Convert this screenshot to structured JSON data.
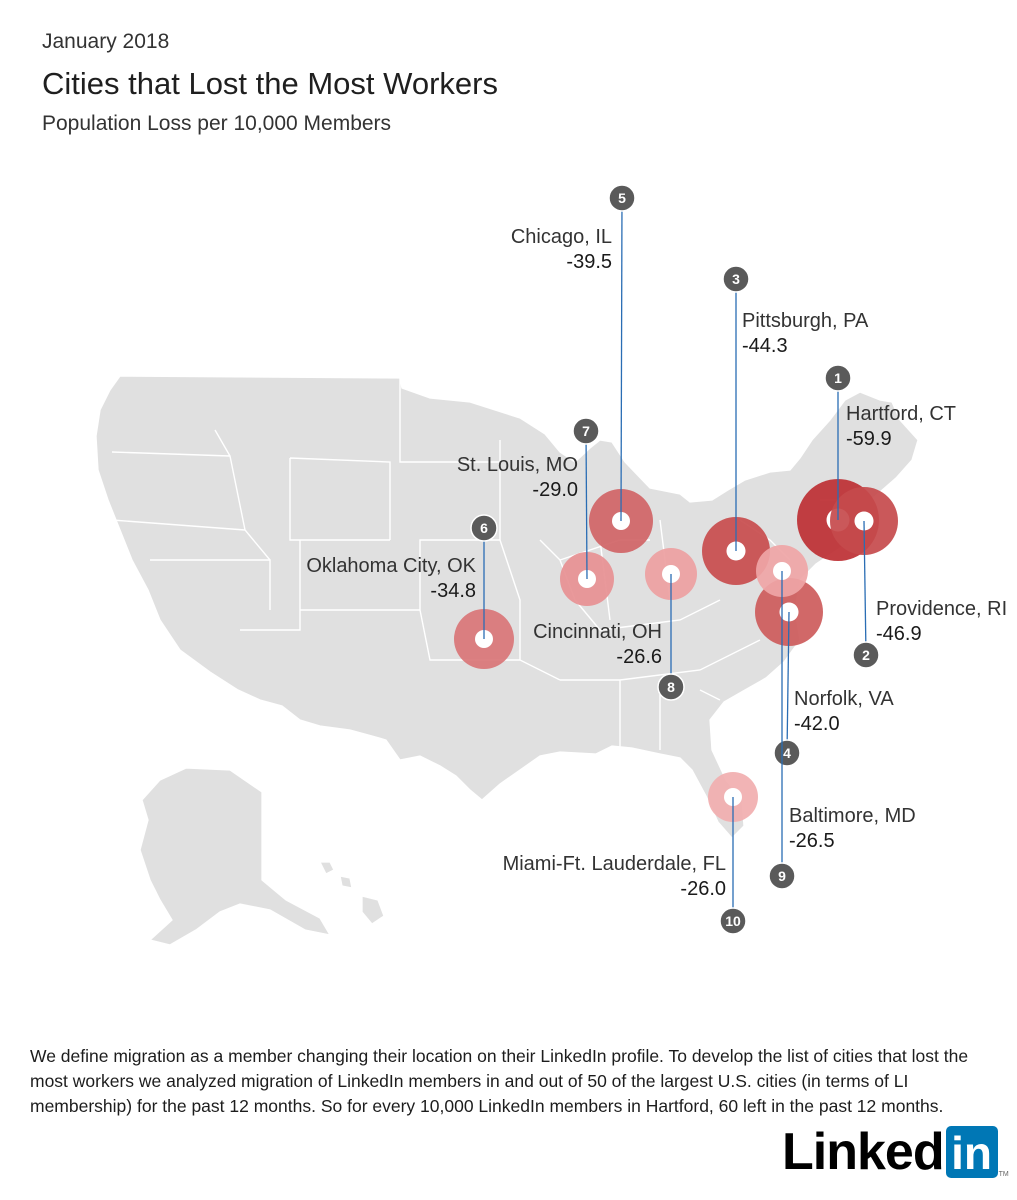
{
  "header": {
    "date": "January 2018",
    "title": "Cities that Lost the Most Workers",
    "subtitle": "Population Loss per 10,000 Members"
  },
  "cities": [
    {
      "rank": "1",
      "name": "Hartford, CT",
      "value": "-59.9",
      "color": "#bd2f33"
    },
    {
      "rank": "2",
      "name": "Providence, RI",
      "value": "-46.9",
      "color": "#c64a4c"
    },
    {
      "rank": "3",
      "name": "Pittsburgh, PA",
      "value": "-44.3",
      "color": "#c84c4d"
    },
    {
      "rank": "4",
      "name": "Norfolk, VA",
      "value": "-42.0",
      "color": "#cd5b5b"
    },
    {
      "rank": "5",
      "name": "Chicago, IL",
      "value": "-39.5",
      "color": "#d06466"
    },
    {
      "rank": "6",
      "name": "Oklahoma City, OK",
      "value": "-34.8",
      "color": "#d97577"
    },
    {
      "rank": "7",
      "name": "St. Louis, MO",
      "value": "-29.0",
      "color": "#e79092"
    },
    {
      "rank": "8",
      "name": "Cincinnati, OH",
      "value": "-26.6",
      "color": "#eda0a1"
    },
    {
      "rank": "9",
      "name": "Baltimore, MD",
      "value": "-26.5",
      "color": "#efa5a6"
    },
    {
      "rank": "10",
      "name": "Miami-Ft. Lauderdale, FL",
      "value": "-26.0",
      "color": "#f1aeaf"
    }
  ],
  "colors": {
    "map_fill": "#e0e0e0",
    "state_border": "#ffffff",
    "leader_line": "#2a6db4",
    "badge": "#5a5a5a"
  },
  "footnote": "We define migration as a member changing their location on their LinkedIn profile. To develop the list of cities that lost the most workers we analyzed migration of LinkedIn members in and out of 50 of the largest U.S. cities (in terms of LI membership) for the past 12 months. So for every 10,000 LinkedIn members in Hartford, 60 left in the past 12 months.",
  "logo": {
    "text": "Linked",
    "box": "in",
    "tm": "TM"
  }
}
